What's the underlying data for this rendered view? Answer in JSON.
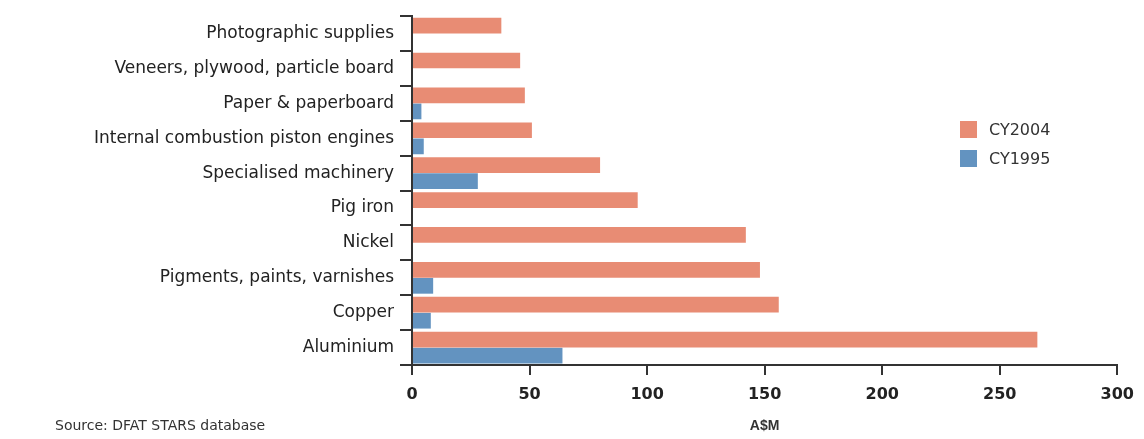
{
  "chart_data": {
    "type": "bar",
    "orientation": "horizontal",
    "categories": [
      "Photographic supplies",
      "Veneers, plywood, particle board",
      "Paper & paperboard",
      "Internal combustion piston engines",
      "Specialised machinery",
      "Pig iron",
      "Nickel",
      "Pigments, paints, varnishes",
      "Copper",
      "Aluminium"
    ],
    "series": [
      {
        "name": "CY2004",
        "color": "#e88c74",
        "values": [
          38,
          46,
          48,
          51,
          80,
          96,
          142,
          148,
          156,
          266
        ]
      },
      {
        "name": "CY1995",
        "color": "#6393c0",
        "values": [
          null,
          null,
          4,
          5,
          28,
          null,
          null,
          9,
          8,
          64
        ]
      }
    ],
    "xlim": [
      0,
      300
    ],
    "xticks": [
      0,
      50,
      100,
      150,
      200,
      250,
      300
    ],
    "xlabel": "A$M",
    "legend": "right",
    "grid": false,
    "annotations": [
      "Source: DFAT STARS database"
    ]
  }
}
